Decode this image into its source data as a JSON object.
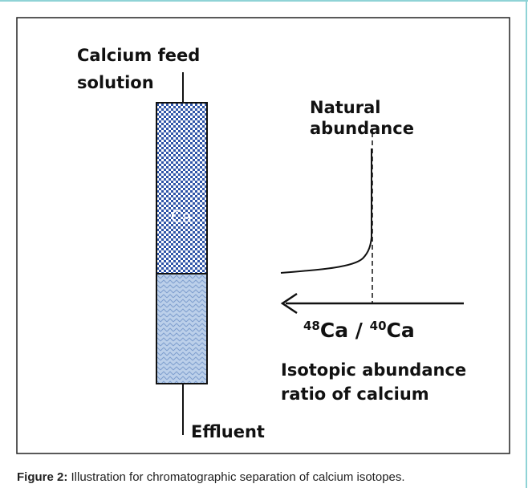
{
  "diagram": {
    "feed_label": [
      "Calcium feed",
      "solution"
    ],
    "column_label": "Ca",
    "natural_label": [
      "Natural",
      "abundance"
    ],
    "axis_label": {
      "mass_a": "48",
      "element_a": "Ca / ",
      "mass_b": "40",
      "element_b": "Ca"
    },
    "ratio_label": [
      "Isotopic abundance",
      "ratio of calcium"
    ],
    "effluent_label": "Effluent"
  },
  "caption": {
    "label": "Figure 2:",
    "text": " Illustration for chromatographic separation of calcium isotopes."
  }
}
